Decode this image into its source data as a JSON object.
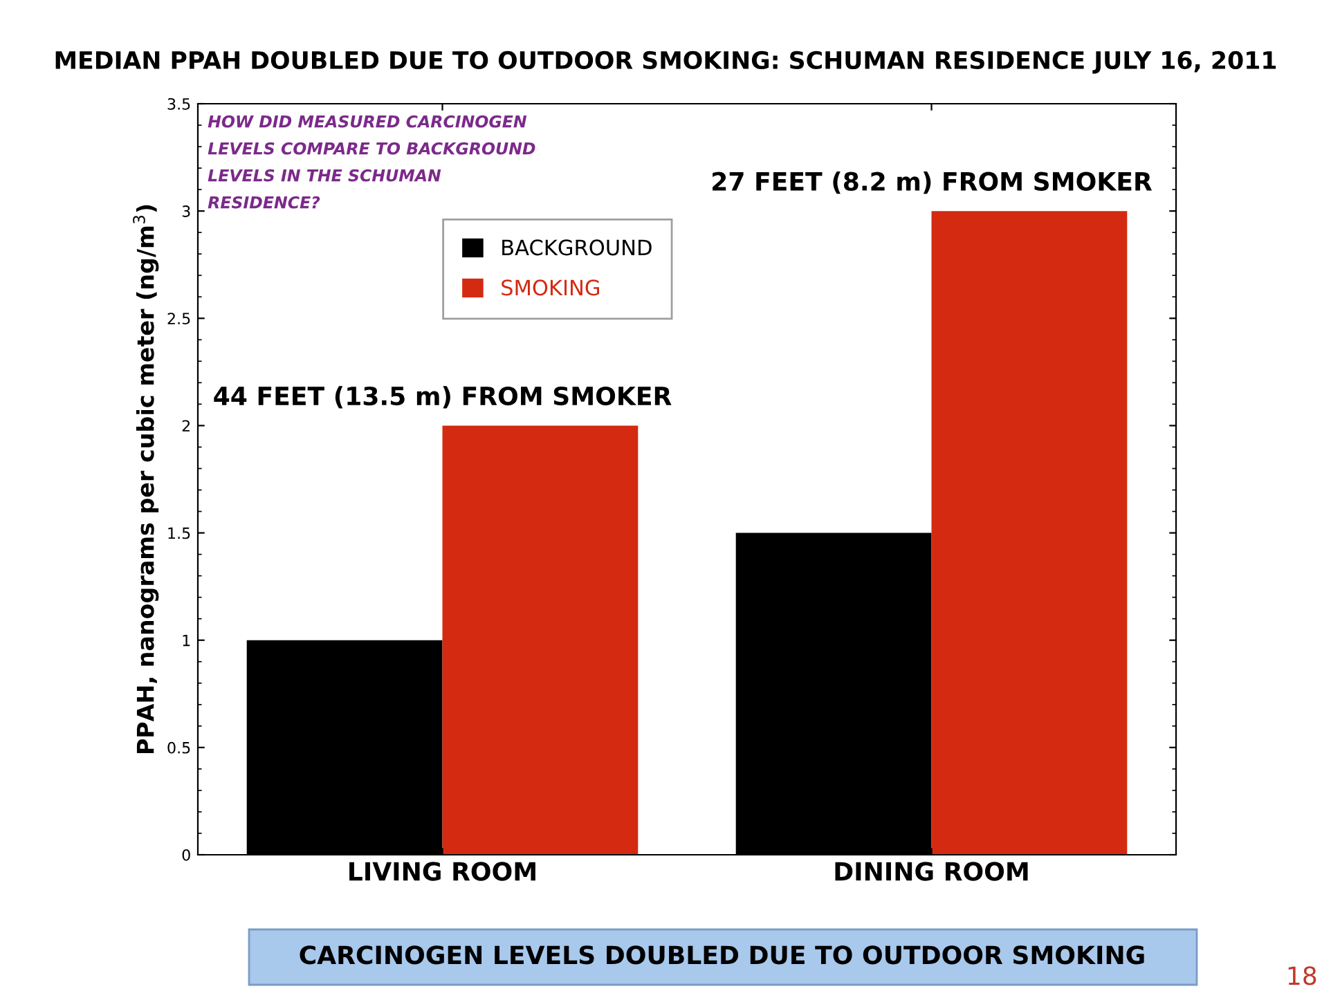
{
  "chart_data": {
    "type": "bar",
    "title": "MEDIAN PPAH DOUBLED DUE TO OUTDOOR SMOKING: SCHUMAN RESIDENCE JULY 16, 2011",
    "ylabel": "PPAH, nanograms per cubic meter (ng/m$^{3}$)",
    "categories": [
      "LIVING ROOM",
      "DINING ROOM"
    ],
    "series": [
      {
        "name": "BACKGROUND",
        "color": "#000000",
        "values": [
          1,
          1.5
        ]
      },
      {
        "name": "SMOKING",
        "color": "#d42a12",
        "values": [
          2,
          3
        ]
      }
    ],
    "ylim": [
      0,
      3.5
    ],
    "yticks": [
      0,
      0.5,
      1,
      1.5,
      2,
      2.5,
      3,
      3.5
    ],
    "grid": false,
    "legend": "top left",
    "annotations": [
      "HOW DID MEASURED CARCINOGEN\nLEVELS COMPARE TO BACKGROUND\nLEVELS IN THE SCHUMAN\nRESIDENCE?",
      {
        "text": "44 FEET (13.5 m) FROM SMOKER",
        "x": "LIVING ROOM",
        "y": 2
      },
      {
        "text": "27 FEET (8.2 m) FROM SMOKER",
        "x": "DINING ROOM",
        "y": 3
      },
      "CARCINOGEN LEVELS DOUBLED DUE TO OUTDOOR SMOKING",
      "18"
    ]
  }
}
